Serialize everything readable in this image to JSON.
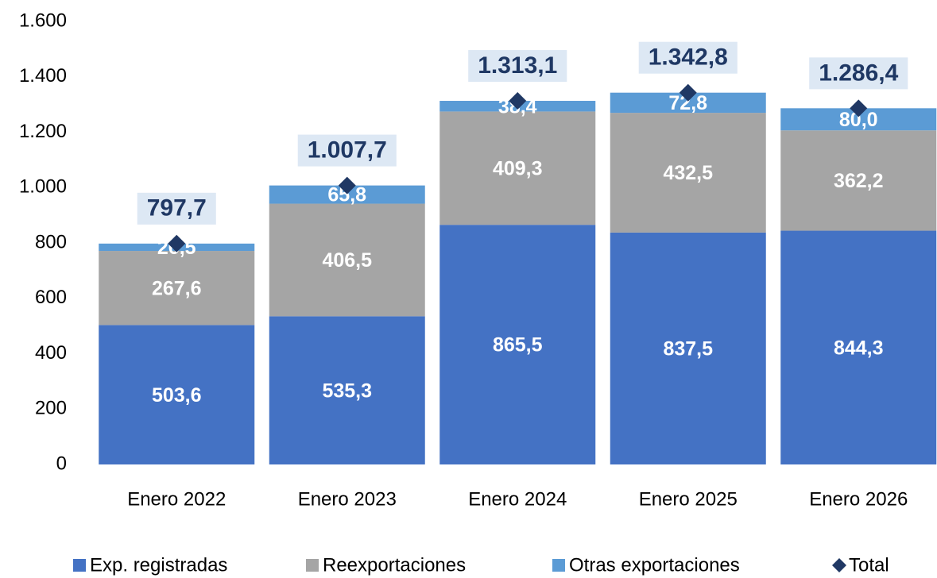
{
  "chart_data": {
    "type": "bar",
    "stacked": true,
    "categories": [
      "Enero 2022",
      "Enero 2023",
      "Enero 2024",
      "Enero 2025",
      "Enero 2026"
    ],
    "series": [
      {
        "name": "Exp. registradas",
        "color": "#4472c4",
        "values": [
          503.6,
          535.3,
          865.5,
          837.5,
          844.3
        ],
        "value_labels": [
          "503,6",
          "535,3",
          "865,5",
          "837,5",
          "844,3"
        ]
      },
      {
        "name": "Reexportaciones",
        "color": "#a5a5a5",
        "values": [
          267.6,
          406.5,
          409.3,
          432.5,
          362.2
        ],
        "value_labels": [
          "267,6",
          "406,5",
          "409,3",
          "432,5",
          "362,2"
        ]
      },
      {
        "name": "Otras exportaciones",
        "color": "#5b9bd5",
        "values": [
          26.5,
          65.8,
          38.4,
          72.8,
          80.0
        ],
        "value_labels": [
          "26,5",
          "65,8",
          "38,4",
          "72,8",
          "80,0"
        ]
      },
      {
        "name": "Total",
        "color": "#203864",
        "marker": "diamond",
        "values": [
          797.7,
          1007.7,
          1313.1,
          1342.8,
          1286.4
        ],
        "value_labels": [
          "797,7",
          "1.007,7",
          "1.313,1",
          "1.342,8",
          "1.286,4"
        ]
      }
    ],
    "ylim": [
      0,
      1600
    ],
    "yticks": [
      0,
      200,
      400,
      600,
      800,
      {
        "value": 1000,
        "label": "1.000"
      },
      {
        "value": 1200,
        "label": "1.200"
      },
      {
        "value": 1400,
        "label": "1.400"
      },
      {
        "value": 1600,
        "label": "1.600"
      }
    ],
    "grid": false,
    "legend": "bottom"
  }
}
